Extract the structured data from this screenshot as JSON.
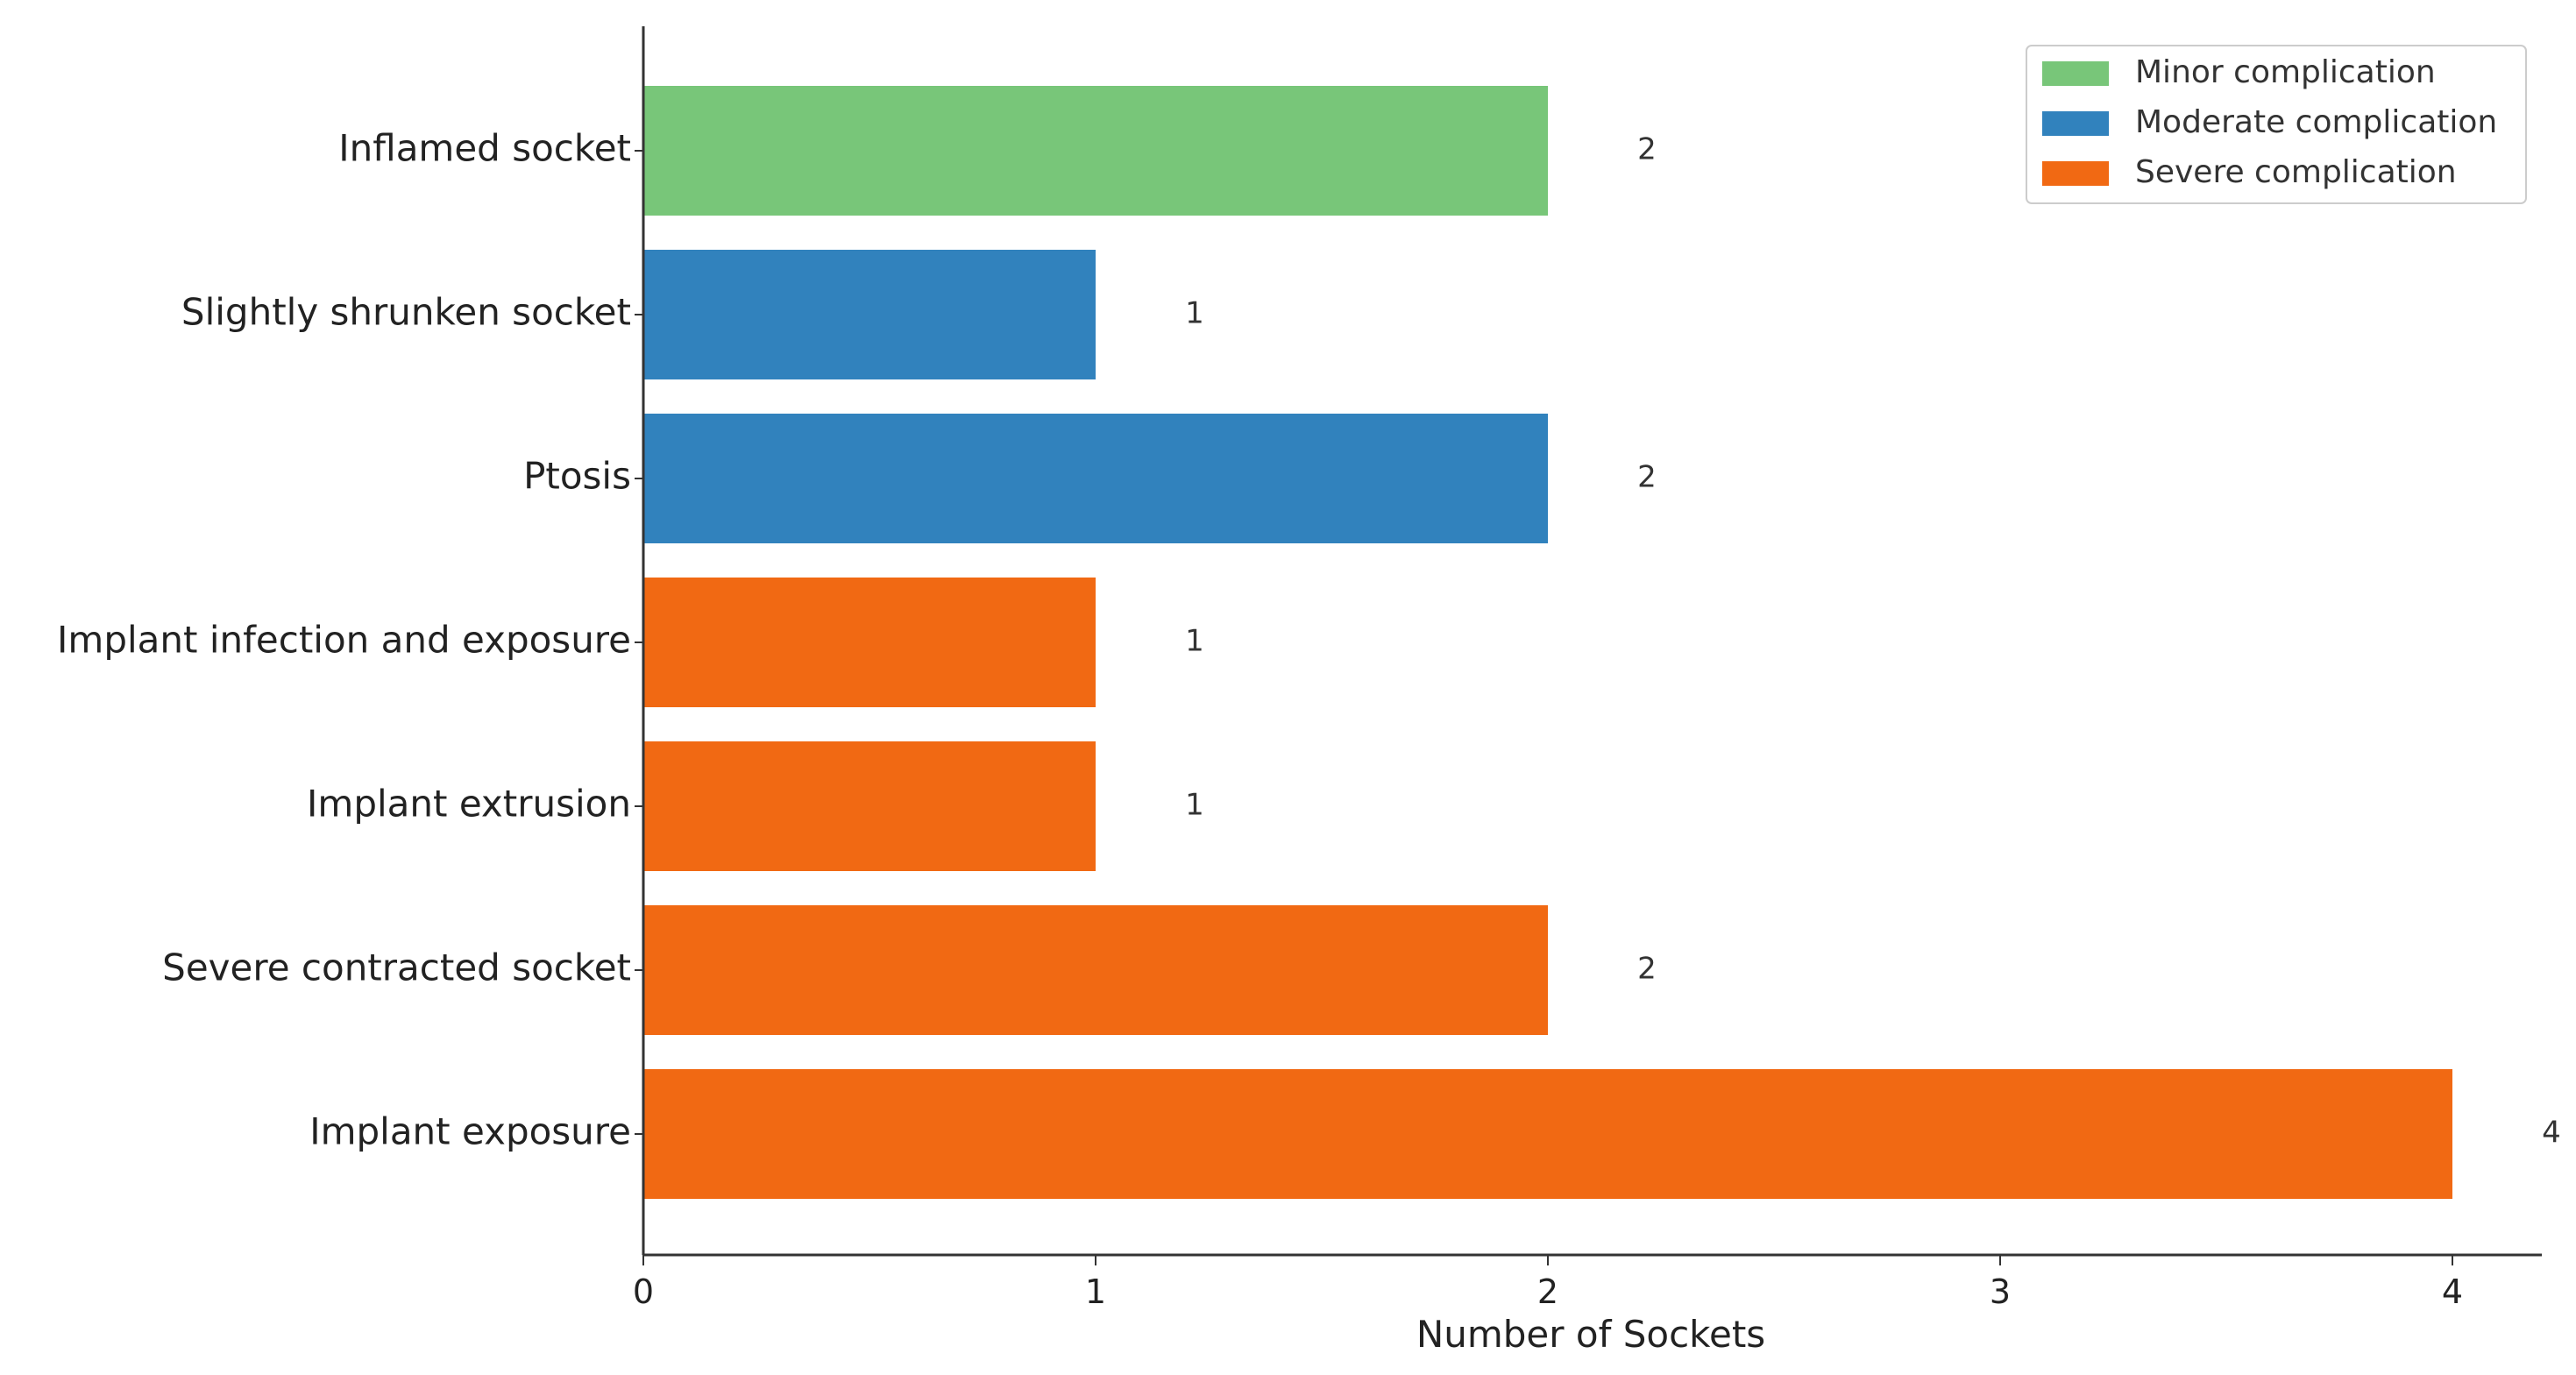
{
  "chart_data": {
    "type": "bar",
    "orientation": "horizontal",
    "categories": [
      "Inflamed socket",
      "Slightly shrunken socket",
      "Ptosis",
      "Implant infection and exposure",
      "Implant extrusion",
      "Severe contracted socket",
      "Implant exposure"
    ],
    "values": [
      2,
      1,
      2,
      1,
      1,
      2,
      4
    ],
    "bar_groups": [
      "Minor complication",
      "Moderate complication",
      "Moderate complication",
      "Severe complication",
      "Severe complication",
      "Severe complication",
      "Severe complication"
    ],
    "value_labels": [
      "2",
      "1",
      "2",
      "1",
      "1",
      "2",
      "4"
    ],
    "xlabel": "Number of Sockets",
    "ylabel": "",
    "xlim": [
      0,
      4.2
    ],
    "xticks": [
      0,
      1,
      2,
      3,
      4
    ],
    "grid": false,
    "legend": {
      "placement": "top-right",
      "entries": [
        {
          "label": "Minor complication",
          "color": "#78c679"
        },
        {
          "label": "Moderate complication",
          "color": "#3182bd"
        },
        {
          "label": "Severe complication",
          "color": "#f16913"
        }
      ]
    }
  }
}
